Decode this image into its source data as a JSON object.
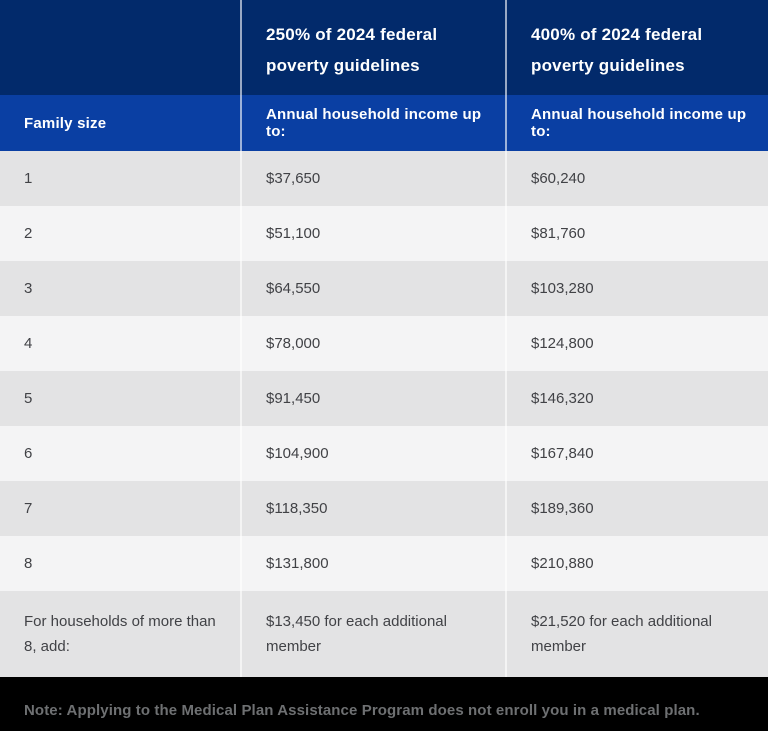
{
  "page": {
    "title": "2024 federal poverty guidelines income limits table"
  },
  "colors": {
    "header_navy": "#022a6b",
    "header_blue": "#0a3fa3",
    "row_gray": "#e3e3e4",
    "row_light": "#f4f4f5",
    "column_separator": "rgba(255,255,255,0.6)",
    "body_text": "#414246",
    "header_text": "#ffffff",
    "note_text": "#6e7072",
    "footer_bg": "#000000"
  },
  "table": {
    "headers": [
      "",
      "250% of 2024 federal poverty guidelines",
      "400% of 2024 federal poverty guidelines"
    ],
    "subheaders": [
      "Family size",
      "Annual household income up to:",
      "Annual household income up to:"
    ],
    "rows": [
      [
        "1",
        "$37,650",
        "$60,240"
      ],
      [
        "2",
        "$51,100",
        "$81,760"
      ],
      [
        "3",
        "$64,550",
        "$103,280"
      ],
      [
        "4",
        "$78,000",
        "$124,800"
      ],
      [
        "5",
        "$91,450",
        "$146,320"
      ],
      [
        "6",
        "$104,900",
        "$167,840"
      ],
      [
        "7",
        "$118,350",
        "$189,360"
      ],
      [
        "8",
        "$131,800",
        "$210,880"
      ],
      [
        "For households of more than 8, add:",
        "$13,450 for each additional member",
        "$21,520 for each additional member"
      ]
    ]
  },
  "footer": {
    "note": "Note: Applying to the Medical Plan Assistance Program does not enroll you in a medical plan."
  },
  "chart_data": {
    "type": "table",
    "title": "2024 federal poverty guidelines — annual household income limits",
    "columns": [
      "Family size",
      "250% of 2024 federal poverty guidelines — Annual household income up to:",
      "400% of 2024 federal poverty guidelines — Annual household income up to:"
    ],
    "family_sizes": [
      "1",
      "2",
      "3",
      "4",
      "5",
      "6",
      "7",
      "8",
      "For households of more than 8, add:"
    ],
    "series": [
      {
        "name": "250% of 2024 federal poverty guidelines",
        "values": [
          37650,
          51100,
          64550,
          78000,
          91450,
          104900,
          118350,
          131800
        ],
        "additional_member": 13450
      },
      {
        "name": "400% of 2024 federal poverty guidelines",
        "values": [
          60240,
          81760,
          103280,
          124800,
          146320,
          167840,
          189360,
          210880
        ],
        "additional_member": 21520
      }
    ],
    "note": "Note: Applying to the Medical Plan Assistance Program does not enroll you in a medical plan."
  }
}
